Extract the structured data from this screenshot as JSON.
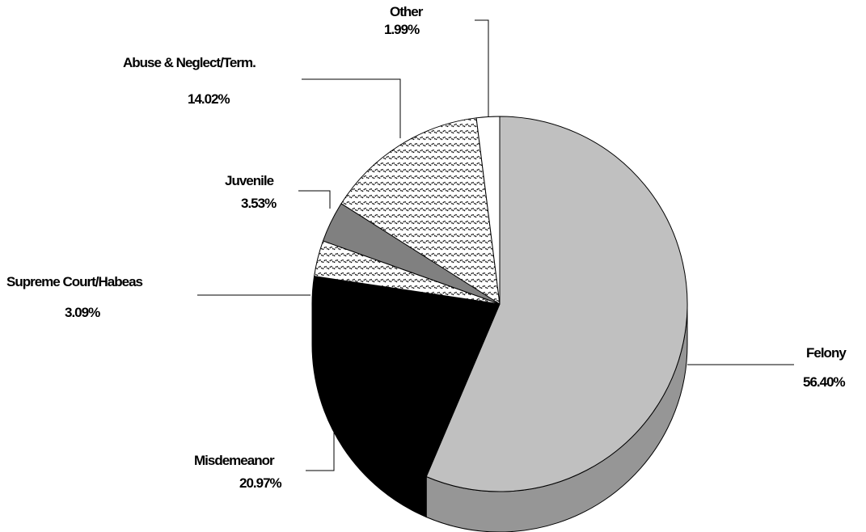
{
  "chart_data": {
    "type": "pie",
    "title": "",
    "style": "3d",
    "slices": [
      {
        "name": "Felony",
        "value": 56.4,
        "label": "56.40%",
        "color": "#c0c0c0",
        "side_color": "#969696",
        "pattern": "solid"
      },
      {
        "name": "Misdemeanor",
        "value": 20.97,
        "label": "20.97%",
        "color": "#000000",
        "side_color": "#000000",
        "pattern": "solid"
      },
      {
        "name": "Supreme Court/Habeas",
        "value": 3.09,
        "label": "3.09%",
        "color": "#ffffff",
        "side_color": "#ffffff",
        "pattern": "zigzag"
      },
      {
        "name": "Juvenile",
        "value": 3.53,
        "label": "3.53%",
        "color": "#808080",
        "side_color": "#808080",
        "pattern": "solid"
      },
      {
        "name": "Abuse & Neglect/Term.",
        "value": 14.02,
        "label": "14.02%",
        "color": "#ffffff",
        "side_color": "#ffffff",
        "pattern": "zigzag"
      },
      {
        "name": "Other",
        "value": 1.99,
        "label": "1.99%",
        "color": "#ffffff",
        "side_color": "#ffffff",
        "pattern": "solid"
      }
    ]
  }
}
